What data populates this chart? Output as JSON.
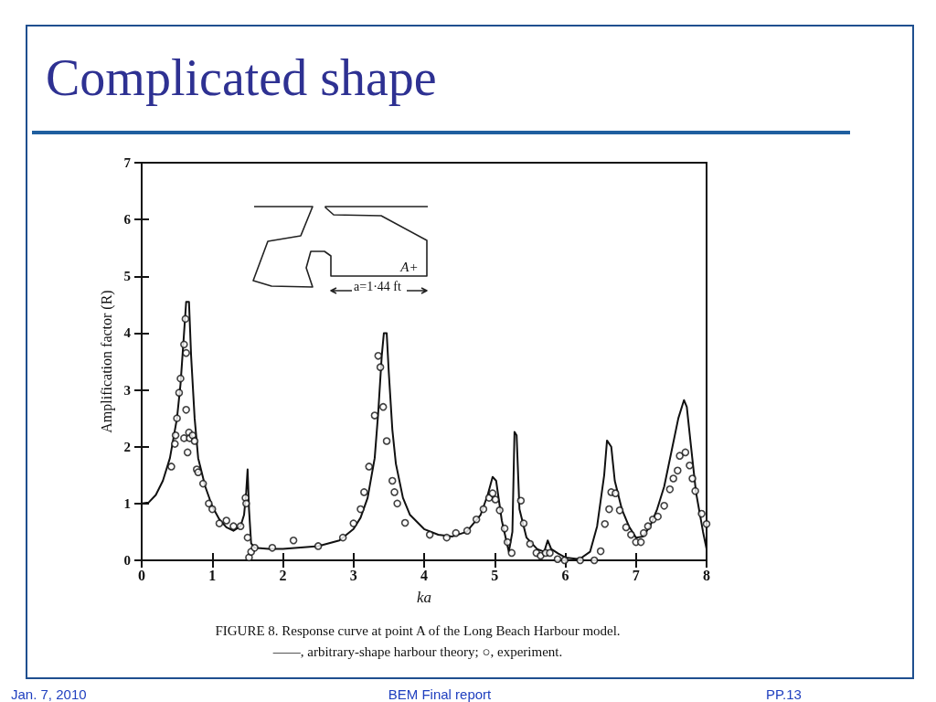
{
  "chart_data": {
    "type": "line",
    "title": "Complicated shape",
    "xlabel": "ka",
    "ylabel": "Amplification factor (R)",
    "xlim": [
      0,
      8
    ],
    "xticks": [
      0,
      1,
      2,
      3,
      4,
      5,
      6,
      7,
      8
    ],
    "ylim": [
      0,
      7
    ],
    "yticks": [
      0,
      1,
      2,
      3,
      4,
      5,
      6,
      7
    ],
    "grid": false,
    "annotations": [
      "FIGURE 8. Response curve at point A of the Long Beach Harbour model.",
      "——, arbitrary-shape harbour theory; ○, experiment.",
      "A+",
      "a=1·44 ft",
      "Jan. 7, 2010",
      "BEM Final report",
      "PP.13"
    ],
    "series": [
      {
        "color": "#111111",
        "marker": "none",
        "line_style": "solid",
        "x": [
          0,
          0.1,
          0.2,
          0.3,
          0.4,
          0.5,
          0.55,
          0.6,
          0.63,
          0.67,
          0.7,
          0.75,
          0.8,
          0.9,
          1.0,
          1.1,
          1.2,
          1.3,
          1.4,
          1.45,
          1.48,
          1.5,
          1.52,
          1.55,
          1.6,
          1.8,
          2.0,
          2.5,
          2.8,
          3.0,
          3.1,
          3.2,
          3.3,
          3.35,
          3.4,
          3.43,
          3.47,
          3.5,
          3.55,
          3.6,
          3.7,
          3.8,
          4.0,
          4.2,
          4.4,
          4.6,
          4.8,
          4.9,
          4.97,
          5.02,
          5.1,
          5.2,
          5.25,
          5.28,
          5.31,
          5.35,
          5.45,
          5.6,
          5.7,
          5.75,
          5.8,
          5.9,
          6.0,
          6.2,
          6.35,
          6.45,
          6.55,
          6.59,
          6.65,
          6.7,
          6.8,
          6.9,
          7.0,
          7.1,
          7.2,
          7.3,
          7.4,
          7.5,
          7.6,
          7.68,
          7.72,
          7.78,
          7.85,
          7.95,
          8.0
        ],
        "values": [
          1.0,
          1.02,
          1.15,
          1.4,
          1.8,
          2.5,
          3.1,
          4.0,
          4.55,
          4.55,
          3.6,
          2.5,
          1.8,
          1.3,
          0.95,
          0.72,
          0.58,
          0.52,
          0.6,
          0.8,
          1.2,
          1.6,
          0.9,
          0.3,
          0.22,
          0.2,
          0.2,
          0.25,
          0.35,
          0.55,
          0.75,
          1.1,
          1.8,
          2.6,
          3.6,
          4.0,
          4.0,
          3.3,
          2.3,
          1.7,
          1.1,
          0.8,
          0.55,
          0.45,
          0.42,
          0.5,
          0.8,
          1.15,
          1.47,
          1.4,
          0.7,
          0.15,
          0.5,
          2.26,
          2.2,
          0.9,
          0.4,
          0.2,
          0.15,
          0.35,
          0.2,
          0.12,
          0.05,
          0.02,
          0.15,
          0.6,
          1.5,
          2.11,
          2.0,
          1.4,
          0.9,
          0.6,
          0.4,
          0.42,
          0.6,
          0.9,
          1.3,
          1.9,
          2.5,
          2.82,
          2.7,
          2.0,
          1.2,
          0.5,
          0.2
        ]
      },
      {
        "type": "scatter",
        "color": "#111111",
        "marker": "circle",
        "x": [
          0.42,
          0.47,
          0.48,
          0.5,
          0.53,
          0.55,
          0.6,
          0.63,
          0.62,
          0.6,
          0.63,
          0.65,
          0.67,
          0.68,
          0.72,
          0.75,
          0.78,
          0.8,
          0.87,
          0.95,
          1.0,
          1.1,
          1.2,
          1.3,
          1.4,
          1.47,
          1.48,
          1.5,
          1.52,
          1.55,
          1.6,
          1.85,
          2.15,
          2.5,
          2.85,
          3.0,
          3.1,
          3.15,
          3.22,
          3.3,
          3.35,
          3.38,
          3.42,
          3.47,
          3.55,
          3.58,
          3.62,
          3.73,
          4.08,
          4.32,
          4.45,
          4.61,
          4.74,
          4.84,
          4.92,
          4.97,
          5.01,
          5.07,
          5.14,
          5.18,
          5.24,
          5.37,
          5.41,
          5.5,
          5.59,
          5.65,
          5.72,
          5.78,
          5.89,
          5.99,
          6.21,
          6.41,
          6.5,
          6.56,
          6.62,
          6.65,
          6.71,
          6.77,
          6.86,
          6.93,
          7.0,
          7.07,
          7.11,
          7.17,
          7.24,
          7.31,
          7.4,
          7.48,
          7.53,
          7.59,
          7.62,
          7.7,
          7.76,
          7.8,
          7.84,
          7.93,
          8.0
        ],
        "values": [
          1.65,
          2.05,
          2.2,
          2.5,
          2.95,
          3.2,
          3.8,
          3.65,
          4.25,
          2.15,
          2.65,
          1.9,
          2.25,
          2.15,
          2.2,
          2.1,
          1.6,
          1.55,
          1.35,
          1.0,
          0.9,
          0.65,
          0.7,
          0.6,
          0.6,
          1.1,
          1.0,
          0.4,
          0.05,
          0.15,
          0.22,
          0.22,
          0.35,
          0.25,
          0.4,
          0.65,
          0.9,
          1.2,
          1.65,
          2.55,
          3.6,
          3.4,
          2.7,
          2.1,
          1.4,
          1.2,
          1.0,
          0.66,
          0.45,
          0.4,
          0.48,
          0.52,
          0.72,
          0.9,
          1.1,
          1.18,
          1.07,
          0.88,
          0.56,
          0.32,
          0.13,
          1.05,
          0.65,
          0.29,
          0.13,
          0.08,
          0.13,
          0.13,
          0.02,
          0.0,
          0.0,
          0.0,
          0.16,
          0.64,
          0.9,
          1.2,
          1.18,
          0.88,
          0.58,
          0.45,
          0.32,
          0.32,
          0.48,
          0.6,
          0.72,
          0.77,
          0.96,
          1.25,
          1.44,
          1.58,
          1.84,
          1.9,
          1.67,
          1.44,
          1.22,
          0.82,
          0.64
        ]
      }
    ]
  }
}
